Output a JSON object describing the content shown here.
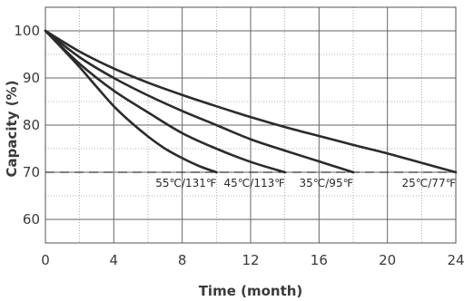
{
  "chart_data": {
    "type": "line",
    "title": "",
    "xlabel": "Time (month)",
    "ylabel": "Capacity (%)",
    "xlim": [
      0,
      24
    ],
    "ylim": [
      55,
      105
    ],
    "xticks": [
      0,
      4,
      8,
      12,
      16,
      20,
      24
    ],
    "yticks": [
      60,
      70,
      80,
      90,
      100
    ],
    "grid": true,
    "reference_line": {
      "y": 70,
      "style": "dashed"
    },
    "series": [
      {
        "name": "55℃/131℉",
        "x": [
          0,
          1,
          2,
          3,
          4,
          5,
          6,
          7,
          8,
          9,
          10
        ],
        "y": [
          100,
          96.2,
          92.3,
          88.1,
          84.0,
          80.6,
          77.6,
          75.0,
          73.0,
          71.3,
          70
        ]
      },
      {
        "name": "45℃/113℉",
        "x": [
          0,
          2,
          4,
          6,
          8,
          10,
          12,
          14
        ],
        "y": [
          100,
          93.0,
          87.3,
          82.7,
          78.3,
          75.0,
          72.2,
          70
        ]
      },
      {
        "name": "35℃/95℉",
        "x": [
          0,
          2,
          4,
          6,
          8,
          10,
          12,
          14,
          16,
          18
        ],
        "y": [
          100,
          94.4,
          90.0,
          86.3,
          83.0,
          80.0,
          77.0,
          74.6,
          72.3,
          70
        ]
      },
      {
        "name": "25℃/77℉",
        "x": [
          0,
          2,
          4,
          6,
          8,
          10,
          12,
          14,
          16,
          18,
          20,
          22,
          24
        ],
        "y": [
          100,
          95.6,
          92.0,
          89.0,
          86.4,
          84.0,
          81.7,
          79.6,
          77.7,
          75.8,
          74.0,
          72.0,
          70
        ]
      }
    ]
  }
}
